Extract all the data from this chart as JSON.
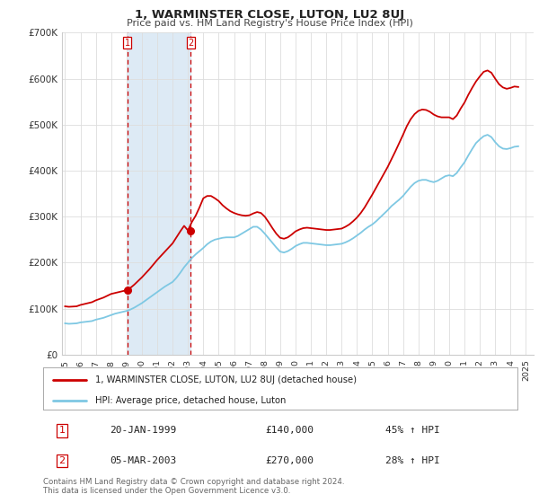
{
  "title": "1, WARMINSTER CLOSE, LUTON, LU2 8UJ",
  "subtitle": "Price paid vs. HM Land Registry's House Price Index (HPI)",
  "background_color": "#ffffff",
  "plot_bg_color": "#ffffff",
  "grid_color": "#dddddd",
  "sale1_date": 1999.05,
  "sale1_price": 140000,
  "sale2_date": 2003.18,
  "sale2_price": 270000,
  "hpi_line_color": "#7ec8e3",
  "price_line_color": "#cc0000",
  "marker_color": "#cc0000",
  "vline_color": "#cc0000",
  "vshade_color": "#ddeaf5",
  "ylim": [
    0,
    700000
  ],
  "xlim_start": 1994.8,
  "xlim_end": 2025.5,
  "xlabel_years": [
    1995,
    1996,
    1997,
    1998,
    1999,
    2000,
    2001,
    2002,
    2003,
    2004,
    2005,
    2006,
    2007,
    2008,
    2009,
    2010,
    2011,
    2012,
    2013,
    2014,
    2015,
    2016,
    2017,
    2018,
    2019,
    2020,
    2021,
    2022,
    2023,
    2024,
    2025
  ],
  "legend_label_price": "1, WARMINSTER CLOSE, LUTON, LU2 8UJ (detached house)",
  "legend_label_hpi": "HPI: Average price, detached house, Luton",
  "table_row1": [
    "1",
    "20-JAN-1999",
    "£140,000",
    "45% ↑ HPI"
  ],
  "table_row2": [
    "2",
    "05-MAR-2003",
    "£270,000",
    "28% ↑ HPI"
  ],
  "footer": "Contains HM Land Registry data © Crown copyright and database right 2024.\nThis data is licensed under the Open Government Licence v3.0.",
  "hpi_data": [
    [
      1995.0,
      68000
    ],
    [
      1995.25,
      67000
    ],
    [
      1995.5,
      67500
    ],
    [
      1995.75,
      68000
    ],
    [
      1996.0,
      70000
    ],
    [
      1996.25,
      71000
    ],
    [
      1996.5,
      72000
    ],
    [
      1996.75,
      73000
    ],
    [
      1997.0,
      76000
    ],
    [
      1997.25,
      78000
    ],
    [
      1997.5,
      80000
    ],
    [
      1997.75,
      83000
    ],
    [
      1998.0,
      86000
    ],
    [
      1998.25,
      89000
    ],
    [
      1998.5,
      91000
    ],
    [
      1998.75,
      93000
    ],
    [
      1999.0,
      95000
    ],
    [
      1999.25,
      98000
    ],
    [
      1999.5,
      102000
    ],
    [
      1999.75,
      107000
    ],
    [
      2000.0,
      112000
    ],
    [
      2000.25,
      118000
    ],
    [
      2000.5,
      124000
    ],
    [
      2000.75,
      130000
    ],
    [
      2001.0,
      136000
    ],
    [
      2001.25,
      142000
    ],
    [
      2001.5,
      148000
    ],
    [
      2001.75,
      153000
    ],
    [
      2002.0,
      158000
    ],
    [
      2002.25,
      167000
    ],
    [
      2002.5,
      178000
    ],
    [
      2002.75,
      190000
    ],
    [
      2003.0,
      200000
    ],
    [
      2003.25,
      210000
    ],
    [
      2003.5,
      218000
    ],
    [
      2003.75,
      225000
    ],
    [
      2004.0,
      232000
    ],
    [
      2004.25,
      240000
    ],
    [
      2004.5,
      246000
    ],
    [
      2004.75,
      250000
    ],
    [
      2005.0,
      252000
    ],
    [
      2005.25,
      254000
    ],
    [
      2005.5,
      255000
    ],
    [
      2005.75,
      255000
    ],
    [
      2006.0,
      255000
    ],
    [
      2006.25,
      258000
    ],
    [
      2006.5,
      263000
    ],
    [
      2006.75,
      268000
    ],
    [
      2007.0,
      273000
    ],
    [
      2007.25,
      278000
    ],
    [
      2007.5,
      278000
    ],
    [
      2007.75,
      272000
    ],
    [
      2008.0,
      263000
    ],
    [
      2008.25,
      253000
    ],
    [
      2008.5,
      243000
    ],
    [
      2008.75,
      233000
    ],
    [
      2009.0,
      224000
    ],
    [
      2009.25,
      222000
    ],
    [
      2009.5,
      225000
    ],
    [
      2009.75,
      230000
    ],
    [
      2010.0,
      236000
    ],
    [
      2010.25,
      240000
    ],
    [
      2010.5,
      243000
    ],
    [
      2010.75,
      243000
    ],
    [
      2011.0,
      242000
    ],
    [
      2011.25,
      241000
    ],
    [
      2011.5,
      240000
    ],
    [
      2011.75,
      239000
    ],
    [
      2012.0,
      238000
    ],
    [
      2012.25,
      238000
    ],
    [
      2012.5,
      239000
    ],
    [
      2012.75,
      240000
    ],
    [
      2013.0,
      241000
    ],
    [
      2013.25,
      244000
    ],
    [
      2013.5,
      248000
    ],
    [
      2013.75,
      253000
    ],
    [
      2014.0,
      259000
    ],
    [
      2014.25,
      265000
    ],
    [
      2014.5,
      272000
    ],
    [
      2014.75,
      278000
    ],
    [
      2015.0,
      283000
    ],
    [
      2015.25,
      290000
    ],
    [
      2015.5,
      298000
    ],
    [
      2015.75,
      306000
    ],
    [
      2016.0,
      314000
    ],
    [
      2016.25,
      323000
    ],
    [
      2016.5,
      330000
    ],
    [
      2016.75,
      337000
    ],
    [
      2017.0,
      345000
    ],
    [
      2017.25,
      355000
    ],
    [
      2017.5,
      365000
    ],
    [
      2017.75,
      373000
    ],
    [
      2018.0,
      378000
    ],
    [
      2018.25,
      380000
    ],
    [
      2018.5,
      380000
    ],
    [
      2018.75,
      377000
    ],
    [
      2019.0,
      375000
    ],
    [
      2019.25,
      378000
    ],
    [
      2019.5,
      383000
    ],
    [
      2019.75,
      388000
    ],
    [
      2020.0,
      390000
    ],
    [
      2020.25,
      388000
    ],
    [
      2020.5,
      395000
    ],
    [
      2020.75,
      407000
    ],
    [
      2021.0,
      418000
    ],
    [
      2021.25,
      433000
    ],
    [
      2021.5,
      447000
    ],
    [
      2021.75,
      460000
    ],
    [
      2022.0,
      468000
    ],
    [
      2022.25,
      475000
    ],
    [
      2022.5,
      478000
    ],
    [
      2022.75,
      473000
    ],
    [
      2023.0,
      462000
    ],
    [
      2023.25,
      453000
    ],
    [
      2023.5,
      448000
    ],
    [
      2023.75,
      447000
    ],
    [
      2024.0,
      449000
    ],
    [
      2024.25,
      452000
    ],
    [
      2024.5,
      453000
    ]
  ],
  "price_data": [
    [
      1995.0,
      105000
    ],
    [
      1995.25,
      104000
    ],
    [
      1995.5,
      104500
    ],
    [
      1995.75,
      105000
    ],
    [
      1996.0,
      108000
    ],
    [
      1996.25,
      110000
    ],
    [
      1996.5,
      112000
    ],
    [
      1996.75,
      114000
    ],
    [
      1997.0,
      118000
    ],
    [
      1997.25,
      121000
    ],
    [
      1997.5,
      124000
    ],
    [
      1997.75,
      128000
    ],
    [
      1998.0,
      132000
    ],
    [
      1998.25,
      134000
    ],
    [
      1998.5,
      136000
    ],
    [
      1998.75,
      138000
    ],
    [
      1999.0,
      140000
    ],
    [
      1999.25,
      145000
    ],
    [
      1999.5,
      152000
    ],
    [
      1999.75,
      160000
    ],
    [
      2000.0,
      168000
    ],
    [
      2000.25,
      177000
    ],
    [
      2000.5,
      186000
    ],
    [
      2000.75,
      196000
    ],
    [
      2001.0,
      206000
    ],
    [
      2001.25,
      215000
    ],
    [
      2001.5,
      224000
    ],
    [
      2001.75,
      233000
    ],
    [
      2002.0,
      242000
    ],
    [
      2002.25,
      255000
    ],
    [
      2002.5,
      268000
    ],
    [
      2002.75,
      280000
    ],
    [
      2003.0,
      270000
    ],
    [
      2003.25,
      288000
    ],
    [
      2003.5,
      302000
    ],
    [
      2003.75,
      320000
    ],
    [
      2004.0,
      340000
    ],
    [
      2004.25,
      345000
    ],
    [
      2004.5,
      345000
    ],
    [
      2004.75,
      340000
    ],
    [
      2005.0,
      334000
    ],
    [
      2005.25,
      325000
    ],
    [
      2005.5,
      318000
    ],
    [
      2005.75,
      312000
    ],
    [
      2006.0,
      308000
    ],
    [
      2006.25,
      305000
    ],
    [
      2006.5,
      303000
    ],
    [
      2006.75,
      302000
    ],
    [
      2007.0,
      303000
    ],
    [
      2007.25,
      307000
    ],
    [
      2007.5,
      310000
    ],
    [
      2007.75,
      308000
    ],
    [
      2008.0,
      300000
    ],
    [
      2008.25,
      288000
    ],
    [
      2008.5,
      275000
    ],
    [
      2008.75,
      263000
    ],
    [
      2009.0,
      254000
    ],
    [
      2009.25,
      252000
    ],
    [
      2009.5,
      255000
    ],
    [
      2009.75,
      261000
    ],
    [
      2010.0,
      268000
    ],
    [
      2010.25,
      272000
    ],
    [
      2010.5,
      275000
    ],
    [
      2010.75,
      276000
    ],
    [
      2011.0,
      275000
    ],
    [
      2011.25,
      274000
    ],
    [
      2011.5,
      273000
    ],
    [
      2011.75,
      272000
    ],
    [
      2012.0,
      271000
    ],
    [
      2012.25,
      271000
    ],
    [
      2012.5,
      272000
    ],
    [
      2012.75,
      273000
    ],
    [
      2013.0,
      274000
    ],
    [
      2013.25,
      278000
    ],
    [
      2013.5,
      283000
    ],
    [
      2013.75,
      290000
    ],
    [
      2014.0,
      298000
    ],
    [
      2014.25,
      308000
    ],
    [
      2014.5,
      320000
    ],
    [
      2014.75,
      334000
    ],
    [
      2015.0,
      348000
    ],
    [
      2015.25,
      363000
    ],
    [
      2015.5,
      378000
    ],
    [
      2015.75,
      393000
    ],
    [
      2016.0,
      408000
    ],
    [
      2016.25,
      425000
    ],
    [
      2016.5,
      442000
    ],
    [
      2016.75,
      460000
    ],
    [
      2017.0,
      478000
    ],
    [
      2017.25,
      497000
    ],
    [
      2017.5,
      512000
    ],
    [
      2017.75,
      523000
    ],
    [
      2018.0,
      530000
    ],
    [
      2018.25,
      533000
    ],
    [
      2018.5,
      532000
    ],
    [
      2018.75,
      528000
    ],
    [
      2019.0,
      522000
    ],
    [
      2019.25,
      518000
    ],
    [
      2019.5,
      516000
    ],
    [
      2019.75,
      516000
    ],
    [
      2020.0,
      516000
    ],
    [
      2020.25,
      512000
    ],
    [
      2020.5,
      520000
    ],
    [
      2020.75,
      535000
    ],
    [
      2021.0,
      548000
    ],
    [
      2021.25,
      565000
    ],
    [
      2021.5,
      580000
    ],
    [
      2021.75,
      594000
    ],
    [
      2022.0,
      605000
    ],
    [
      2022.25,
      615000
    ],
    [
      2022.5,
      618000
    ],
    [
      2022.75,
      613000
    ],
    [
      2023.0,
      600000
    ],
    [
      2023.25,
      588000
    ],
    [
      2023.5,
      581000
    ],
    [
      2023.75,
      578000
    ],
    [
      2024.0,
      580000
    ],
    [
      2024.25,
      583000
    ],
    [
      2024.5,
      582000
    ]
  ]
}
